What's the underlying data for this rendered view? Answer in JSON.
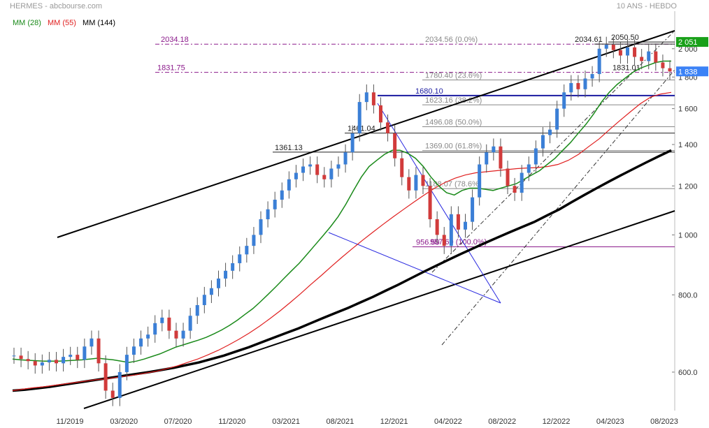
{
  "header": {
    "left_title": "HERMES - abcbourse.com",
    "right_title": "10 ANS - HEBDO"
  },
  "legend": [
    {
      "label": "MM (28)",
      "color": "#1a8a1a"
    },
    {
      "label": "MM (55)",
      "color": "#e02020"
    },
    {
      "label": "MM (144)",
      "color": "#000000"
    }
  ],
  "chart_data": {
    "type": "candlestick",
    "y_axis": {
      "scale": "log",
      "min": 520,
      "max": 2300,
      "ticks": [
        "600.0",
        "800.0",
        "1 000",
        "1 200",
        "1 400",
        "1 600",
        "1 800",
        "2 000"
      ],
      "tick_values": [
        600,
        800,
        1000,
        1200,
        1400,
        1600,
        1800,
        2000
      ]
    },
    "x_axis": {
      "ticks": [
        "11/2019",
        "03/2020",
        "07/2020",
        "11/2020",
        "03/2021",
        "08/2021",
        "12/2021",
        "04/2022",
        "08/2022",
        "12/2022",
        "04/2023",
        "08/2023"
      ]
    },
    "series": {
      "close": [
        638,
        630,
        625,
        615,
        622,
        628,
        620,
        635,
        640,
        628,
        660,
        680,
        620,
        560,
        545,
        600,
        640,
        660,
        680,
        690,
        720,
        735,
        700,
        680,
        700,
        740,
        770,
        800,
        820,
        850,
        875,
        900,
        930,
        960,
        1000,
        1060,
        1100,
        1140,
        1180,
        1230,
        1260,
        1290,
        1300,
        1250,
        1230,
        1280,
        1300,
        1360,
        1460,
        1640,
        1700,
        1620,
        1520,
        1460,
        1330,
        1240,
        1180,
        1250,
        1200,
        1060,
        1000,
        960,
        1080,
        1020,
        1050,
        1150,
        1300,
        1360,
        1390,
        1280,
        1200,
        1170,
        1260,
        1300,
        1380,
        1450,
        1480,
        1600,
        1700,
        1760,
        1720,
        1790,
        1820,
        2000,
        2030,
        1990,
        1950,
        2010,
        1940,
        1910,
        1980,
        1900,
        1860,
        1838
      ],
      "sma28": [
        630,
        628,
        627,
        626,
        625,
        625,
        625,
        626,
        627,
        628,
        630,
        632,
        630,
        628,
        625,
        622,
        625,
        630,
        636,
        642,
        650,
        658,
        664,
        670,
        676,
        683,
        692,
        702,
        714,
        728,
        744,
        760,
        780,
        802,
        825,
        850,
        875,
        900,
        930,
        962,
        995,
        1030,
        1070,
        1120,
        1180,
        1240,
        1290,
        1320,
        1350,
        1370,
        1370,
        1355,
        1330,
        1290,
        1240,
        1200,
        1170,
        1160,
        1180,
        1190,
        1190,
        1185,
        1180,
        1190,
        1200,
        1210,
        1230,
        1250,
        1270,
        1300,
        1330,
        1370,
        1410,
        1460,
        1510,
        1570,
        1640,
        1700,
        1750,
        1790,
        1830,
        1860,
        1880,
        1900,
        1910,
        1910
      ],
      "sma55": [
        560,
        563,
        566,
        568,
        571,
        574,
        577,
        580,
        583,
        585,
        588,
        591,
        594,
        598,
        602,
        608,
        614,
        622,
        630,
        640,
        651,
        664,
        678,
        694,
        712,
        732,
        754,
        778,
        804,
        832,
        860,
        890,
        920,
        950,
        980,
        1010,
        1040,
        1070,
        1100,
        1130,
        1160,
        1190,
        1215,
        1235,
        1250,
        1260,
        1265,
        1270,
        1275,
        1280,
        1283,
        1285,
        1290,
        1300,
        1320,
        1350,
        1390,
        1430,
        1480,
        1530,
        1580,
        1630,
        1670,
        1690,
        1700
      ],
      "sma144": [
        560,
        562,
        565,
        568,
        572,
        576,
        580,
        584,
        588,
        592,
        596,
        600,
        605,
        610,
        616,
        622,
        630,
        638,
        648,
        658,
        670,
        682,
        694,
        706,
        720,
        734,
        748,
        762,
        778,
        794,
        812,
        830,
        850,
        870,
        890,
        910,
        930,
        950,
        970,
        990,
        1010,
        1030,
        1050,
        1075,
        1100,
        1130,
        1160,
        1190,
        1220,
        1250,
        1280,
        1310,
        1340,
        1370
      ]
    },
    "horizontal_levels": [
      {
        "label": "2034.18",
        "value": 2034.18
      },
      {
        "label": "2034.56  (0.0%)",
        "value": 2034.56
      },
      {
        "label": "2034.61",
        "value": 2034.61
      },
      {
        "label": "2050.50",
        "value": 2050.5
      },
      {
        "label": "1831.75",
        "value": 1831.75
      },
      {
        "label": "1831.01",
        "value": 1831.01
      },
      {
        "label": "1780.40  (23.6%)",
        "value": 1780.4
      },
      {
        "label": "1680.10",
        "value": 1680.1
      },
      {
        "label": "1623.16  (38.2%)",
        "value": 1623.16
      },
      {
        "label": "1496.08  (50.0%)",
        "value": 1496.08
      },
      {
        "label": "1461.04",
        "value": 1461.04
      },
      {
        "label": "1369.00  (61.8%)",
        "value": 1369.0
      },
      {
        "label": "1361.13",
        "value": 1361.13
      },
      {
        "label": "1188.07  (78.6%)",
        "value": 1188.07
      },
      {
        "label": "957.60  (100.0%)",
        "value": 957.6
      },
      {
        "label": "956.50",
        "value": 956.5
      }
    ],
    "price_tags": [
      {
        "label": "2 051",
        "value": 2051,
        "color": "#19a019"
      },
      {
        "label": "1 838",
        "value": 1838,
        "color": "#3b82f6"
      }
    ]
  }
}
